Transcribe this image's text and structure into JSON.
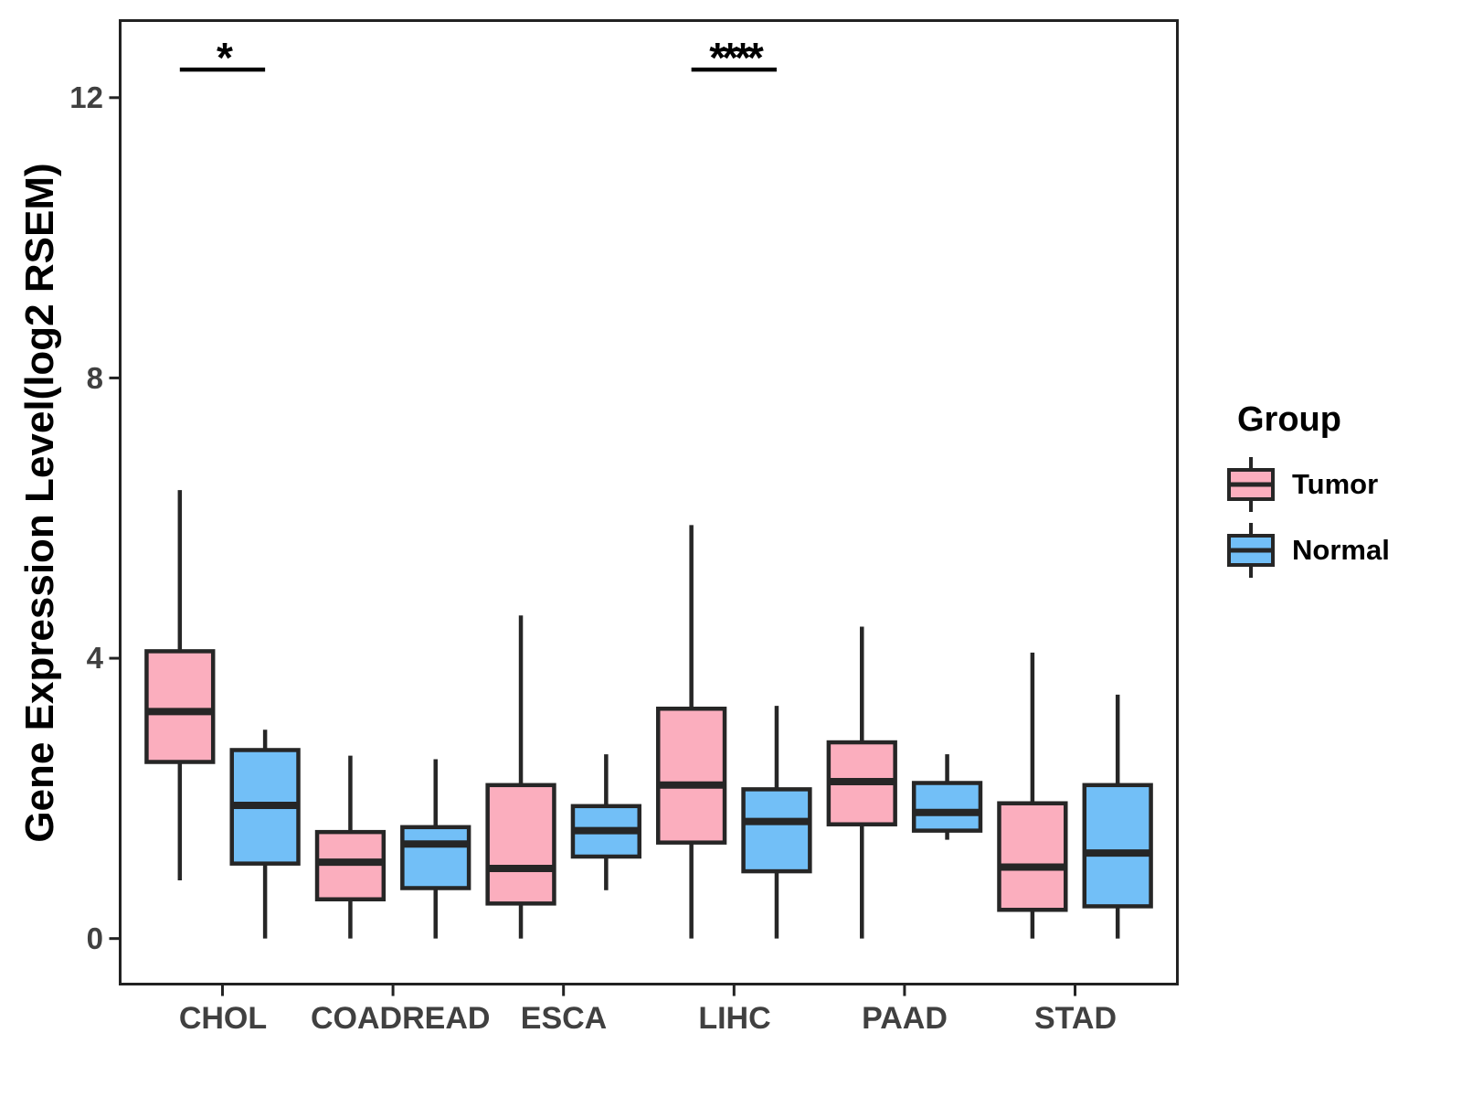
{
  "y_axis": {
    "title": "Gene Expression Level(log2 RSEM)"
  },
  "legend": {
    "title": "Group"
  },
  "chart_data": {
    "type": "boxplot",
    "title": "",
    "xlabel": "",
    "ylabel": "Gene Expression Level(log2 RSEM)",
    "categories": [
      "CHOL",
      "COADREAD",
      "ESCA",
      "LIHC",
      "PAAD",
      "STAD"
    ],
    "y_ticks": [
      12,
      8,
      4,
      0
    ],
    "ylim": [
      -0.65,
      13.1
    ],
    "grid": false,
    "legend_position": "right",
    "panel_border_color": "#222222",
    "box_stroke": "#262626",
    "series": [
      {
        "name": "Tumor",
        "color": "#FBAEBE",
        "boxes": [
          {
            "whisker_low": 0.83,
            "q1": 2.52,
            "median": 3.24,
            "q3": 4.1,
            "whisker_high": 6.4
          },
          {
            "whisker_low": 0.0,
            "q1": 0.56,
            "median": 1.09,
            "q3": 1.52,
            "whisker_high": 2.61
          },
          {
            "whisker_low": 0.0,
            "q1": 0.5,
            "median": 1.0,
            "q3": 2.19,
            "whisker_high": 4.61
          },
          {
            "whisker_low": 0.0,
            "q1": 1.37,
            "median": 2.19,
            "q3": 3.28,
            "whisker_high": 5.9
          },
          {
            "whisker_low": 0.0,
            "q1": 1.63,
            "median": 2.24,
            "q3": 2.8,
            "whisker_high": 4.45
          },
          {
            "whisker_low": 0.0,
            "q1": 0.41,
            "median": 1.02,
            "q3": 1.93,
            "whisker_high": 4.08
          }
        ]
      },
      {
        "name": "Normal",
        "color": "#72BFF7",
        "boxes": [
          {
            "whisker_low": 0.0,
            "q1": 1.07,
            "median": 1.9,
            "q3": 2.69,
            "whisker_high": 2.98
          },
          {
            "whisker_low": 0.0,
            "q1": 0.72,
            "median": 1.35,
            "q3": 1.59,
            "whisker_high": 2.56
          },
          {
            "whisker_low": 0.69,
            "q1": 1.17,
            "median": 1.54,
            "q3": 1.89,
            "whisker_high": 2.63
          },
          {
            "whisker_low": 0.0,
            "q1": 0.96,
            "median": 1.67,
            "q3": 2.13,
            "whisker_high": 3.32
          },
          {
            "whisker_low": 1.41,
            "q1": 1.54,
            "median": 1.8,
            "q3": 2.22,
            "whisker_high": 2.63
          },
          {
            "whisker_low": 0.0,
            "q1": 0.46,
            "median": 1.22,
            "q3": 2.19,
            "whisker_high": 3.48
          }
        ]
      }
    ],
    "significance": [
      {
        "category": "CHOL",
        "label": "*",
        "bar_y": 12.4
      },
      {
        "category": "LIHC",
        "label": "****",
        "bar_y": 12.4
      }
    ]
  }
}
